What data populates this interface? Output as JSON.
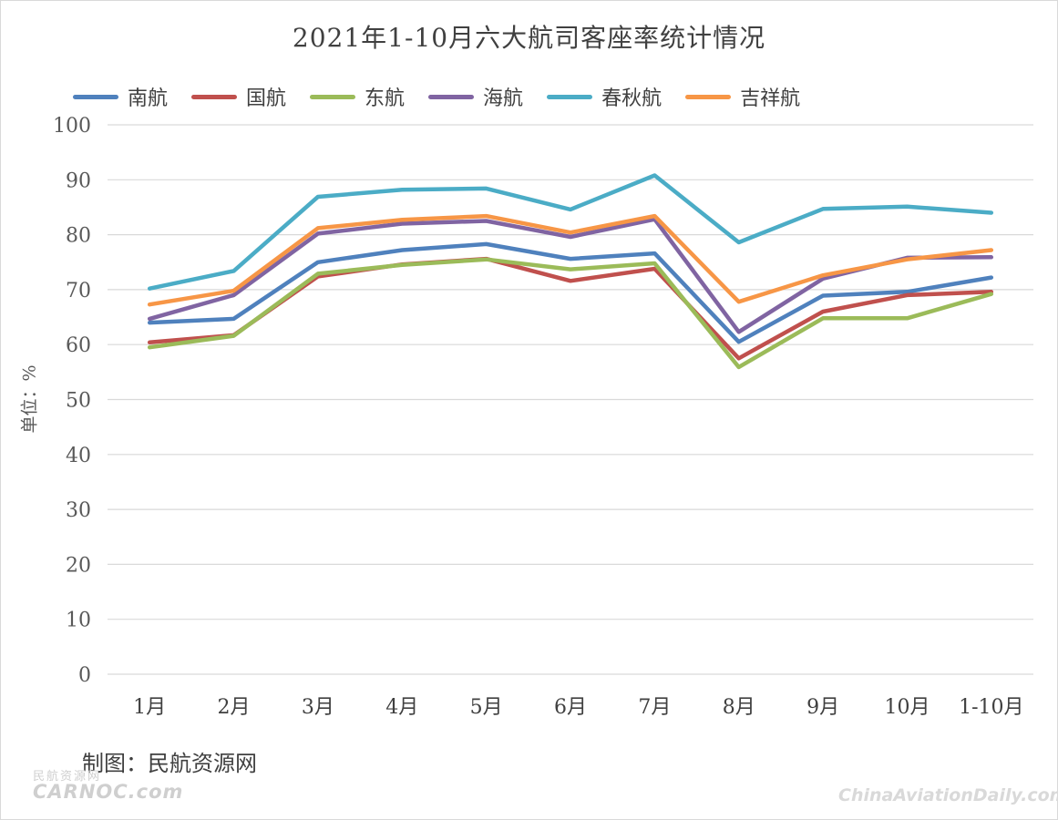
{
  "chart_data": {
    "type": "line",
    "title": "2021年1-10月六大航司客座率统计情况",
    "ylabel": "单位：%",
    "xlabel": "",
    "ylim": [
      0,
      100
    ],
    "yticks": [
      0,
      10,
      20,
      30,
      40,
      50,
      60,
      70,
      80,
      90,
      100
    ],
    "grid": true,
    "legend_position": "top-left",
    "categories": [
      "1月",
      "2月",
      "3月",
      "4月",
      "5月",
      "6月",
      "7月",
      "8月",
      "9月",
      "10月",
      "1-10月"
    ],
    "series": [
      {
        "name": "南航",
        "color": "#4f81bd",
        "values": [
          64.0,
          64.7,
          75.0,
          77.2,
          78.3,
          75.6,
          76.6,
          60.5,
          68.9,
          69.6,
          72.2
        ]
      },
      {
        "name": "国航",
        "color": "#c0504d",
        "values": [
          60.4,
          61.7,
          72.4,
          74.6,
          75.6,
          71.6,
          73.8,
          57.5,
          66.0,
          69.0,
          69.6
        ]
      },
      {
        "name": "东航",
        "color": "#9bbb59",
        "values": [
          59.5,
          61.6,
          72.9,
          74.5,
          75.5,
          73.7,
          74.8,
          55.9,
          64.8,
          64.8,
          69.2
        ]
      },
      {
        "name": "海航",
        "color": "#8064a2",
        "values": [
          64.7,
          69.0,
          80.2,
          82.0,
          82.5,
          79.6,
          82.8,
          62.3,
          72.0,
          75.8,
          75.9
        ]
      },
      {
        "name": "春秋航",
        "color": "#4bacc6",
        "values": [
          70.2,
          73.4,
          86.9,
          88.2,
          88.4,
          84.6,
          90.8,
          78.6,
          84.7,
          85.1,
          84.0
        ]
      },
      {
        "name": "吉祥航",
        "color": "#f79646",
        "values": [
          67.3,
          69.8,
          81.2,
          82.7,
          83.4,
          80.4,
          83.4,
          67.8,
          72.6,
          75.5,
          77.2
        ]
      }
    ]
  },
  "credit": "制图：民航资源网",
  "watermark_left": {
    "cn": "民航资源网",
    "en": "CARNOC.com"
  },
  "watermark_right": "ChinaAviationDaily.com"
}
